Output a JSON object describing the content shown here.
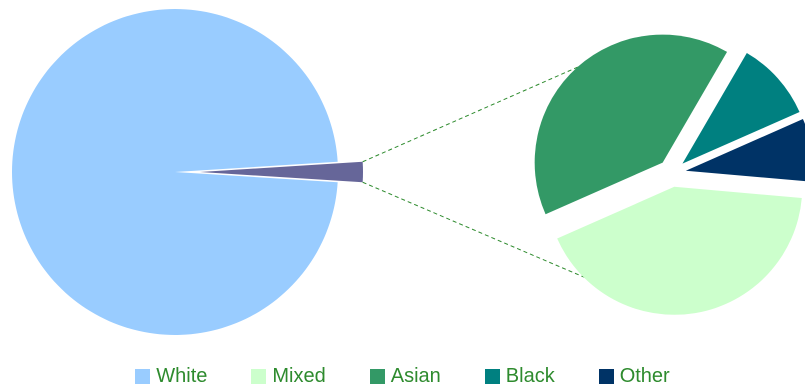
{
  "chart_data": {
    "type": "bar-of-pie",
    "title": "",
    "categories": [
      "White",
      "Mixed",
      "Asian",
      "Black",
      "Other"
    ],
    "main_pie": [
      {
        "name": "White",
        "value": 98.0,
        "color": "#99ccff"
      },
      {
        "name": "Others",
        "value": 2.0,
        "color": "#666699"
      }
    ],
    "secondary_pie": [
      {
        "name": "Mixed",
        "value": 42.0,
        "color": "#ccffcc"
      },
      {
        "name": "Asian",
        "value": 40.0,
        "color": "#339966"
      },
      {
        "name": "Black",
        "value": 10.0,
        "color": "#008080"
      },
      {
        "name": "Other",
        "value": 8.0,
        "color": "#003366"
      }
    ],
    "legend": [
      {
        "label": "White",
        "color": "#99ccff"
      },
      {
        "label": "Mixed",
        "color": "#ccffcc"
      },
      {
        "label": "Asian",
        "color": "#339966"
      },
      {
        "label": "Black",
        "color": "#008080"
      },
      {
        "label": "Other",
        "color": "#003366"
      }
    ],
    "legend_position": "bottom",
    "connector_color": "#2e8b2e"
  }
}
